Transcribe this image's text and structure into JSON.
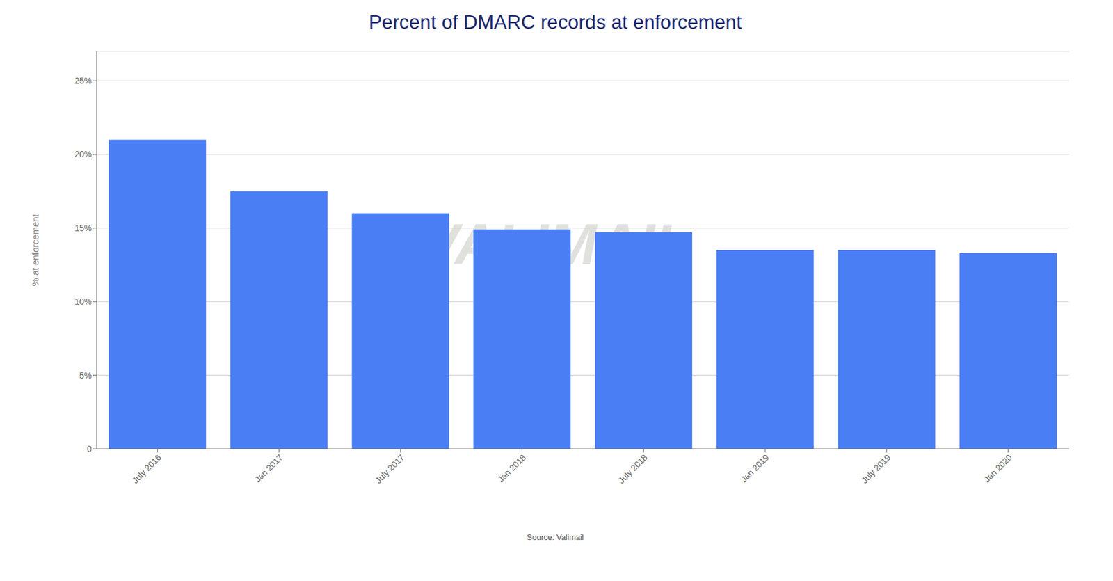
{
  "chart_data": {
    "type": "bar",
    "title": "Percent of DMARC records at enforcement",
    "categories": [
      "July 2016",
      "Jan 2017",
      "July 2017",
      "Jan 2018",
      "July 2018",
      "Jan 2019",
      "July 2019",
      "Jan 2020"
    ],
    "values": [
      0.21,
      0.175,
      0.16,
      0.149,
      0.147,
      0.135,
      0.135,
      0.133
    ],
    "color": "#4a7ef5",
    "ylabel": "% at enforcement",
    "ylim": [
      0,
      0.27
    ],
    "yticks": [
      0,
      {
        "value": 0.05,
        "label": "5%"
      },
      {
        "value": 0.1,
        "label": "10%"
      },
      {
        "value": 0.15,
        "label": "15%"
      },
      {
        "value": 0.2,
        "label": "20%"
      },
      {
        "value": 0.25,
        "label": "25%"
      }
    ],
    "grid": true,
    "annotations": [
      "VALIMAIL",
      "Source: Valimail"
    ]
  }
}
